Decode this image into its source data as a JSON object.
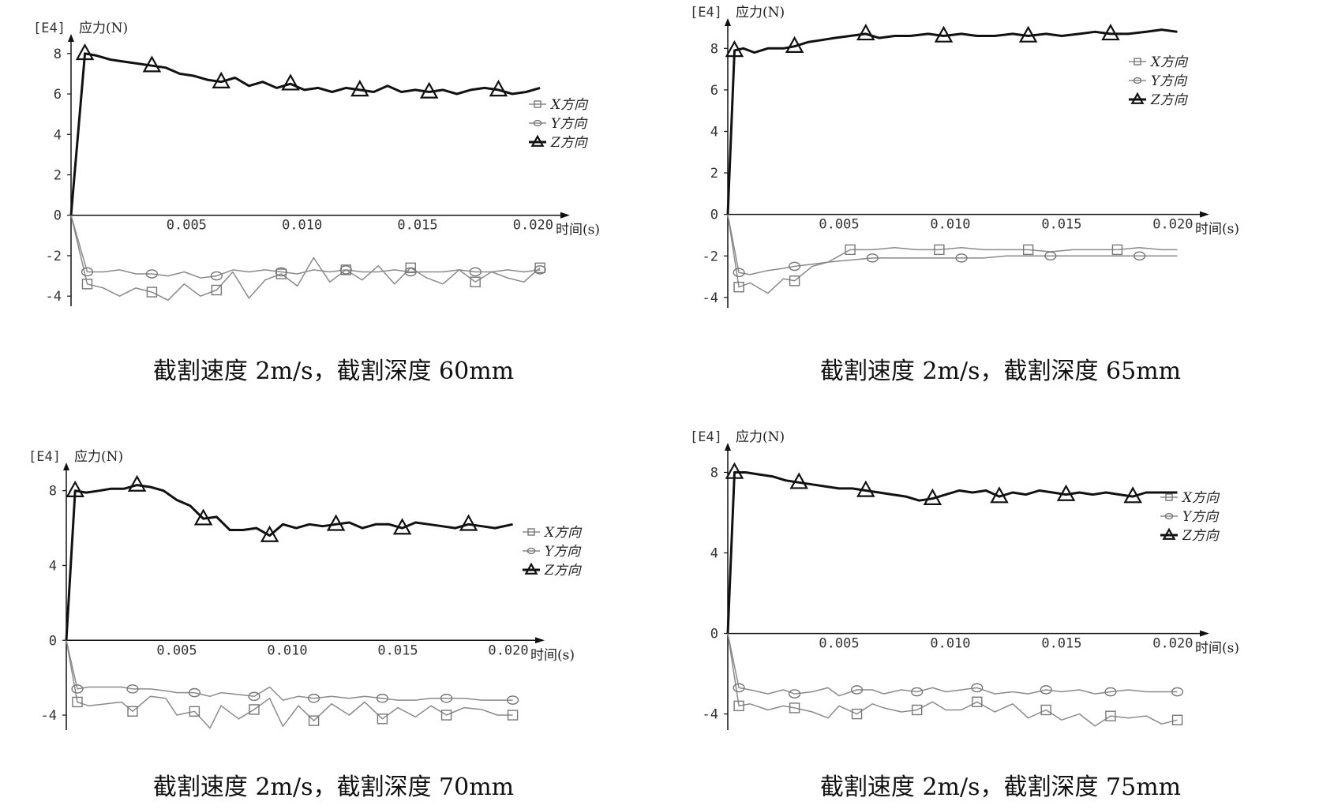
{
  "chart_data": [
    {
      "type": "line",
      "caption": "截割速度 2m/s，截割深度 60mm",
      "scale_label": "[E4]",
      "ylabel": "应力(N)",
      "xlabel": "时间(s)",
      "x_ticks": [
        "0.005",
        "0.010",
        "0.015",
        "0.020"
      ],
      "y_ticks": [
        "-4",
        "-2",
        "0",
        "2",
        "4",
        "6",
        "8"
      ],
      "xlim": [
        0,
        0.0205
      ],
      "ylim": [
        -4.5,
        8.5
      ],
      "legend_position": "right",
      "series": [
        {
          "name": "X方向",
          "marker": "square",
          "x": [
            0,
            0.0007,
            0.0014,
            0.0021,
            0.0028,
            0.0035,
            0.0042,
            0.0049,
            0.0056,
            0.0063,
            0.007,
            0.0077,
            0.0084,
            0.0091,
            0.0098,
            0.0105,
            0.0112,
            0.0119,
            0.0126,
            0.0133,
            0.014,
            0.0147,
            0.0154,
            0.0161,
            0.0168,
            0.0175,
            0.0182,
            0.0189,
            0.0196,
            0.0203
          ],
          "y": [
            0,
            -3.4,
            -3.6,
            -4.0,
            -3.6,
            -3.8,
            -4.2,
            -3.4,
            -4.0,
            -3.7,
            -2.8,
            -4.1,
            -3.2,
            -2.9,
            -3.5,
            -2.1,
            -3.3,
            -2.7,
            -3.2,
            -2.5,
            -3.4,
            -2.6,
            -3.1,
            -3.4,
            -2.7,
            -3.3,
            -2.8,
            -3.1,
            -3.3,
            -2.6
          ]
        },
        {
          "name": "Y方向",
          "marker": "circle",
          "x": [
            0,
            0.0007,
            0.0014,
            0.0021,
            0.0028,
            0.0035,
            0.0042,
            0.0049,
            0.0056,
            0.0063,
            0.007,
            0.0077,
            0.0084,
            0.0091,
            0.0098,
            0.0105,
            0.0112,
            0.0119,
            0.0126,
            0.0133,
            0.014,
            0.0147,
            0.0154,
            0.0161,
            0.0168,
            0.0175,
            0.0182,
            0.0189,
            0.0196,
            0.0203
          ],
          "y": [
            0,
            -2.8,
            -2.8,
            -2.7,
            -2.9,
            -2.9,
            -3.0,
            -2.8,
            -3.1,
            -3.0,
            -2.7,
            -2.8,
            -2.7,
            -2.8,
            -2.9,
            -2.7,
            -2.8,
            -2.7,
            -2.8,
            -2.8,
            -2.7,
            -2.8,
            -2.8,
            -2.8,
            -2.7,
            -2.8,
            -2.8,
            -2.7,
            -2.8,
            -2.7
          ]
        },
        {
          "name": "Z方向",
          "marker": "triangle",
          "x": [
            0,
            0.0006,
            0.0011,
            0.0017,
            0.0023,
            0.0029,
            0.0035,
            0.0041,
            0.0047,
            0.0053,
            0.0059,
            0.0065,
            0.0071,
            0.0077,
            0.0083,
            0.0089,
            0.0095,
            0.0101,
            0.0107,
            0.0113,
            0.0119,
            0.0125,
            0.0131,
            0.0137,
            0.0143,
            0.0149,
            0.0155,
            0.0161,
            0.0167,
            0.0173,
            0.0179,
            0.0185,
            0.0191,
            0.0197,
            0.0203
          ],
          "y": [
            0,
            8.0,
            7.9,
            7.7,
            7.6,
            7.5,
            7.4,
            7.3,
            7.0,
            6.9,
            6.7,
            6.6,
            6.8,
            6.4,
            6.6,
            6.3,
            6.5,
            6.2,
            6.3,
            6.1,
            6.3,
            6.2,
            6.1,
            6.4,
            6.1,
            6.2,
            6.1,
            6.2,
            6.0,
            6.2,
            6.3,
            6.2,
            6.0,
            6.1,
            6.3
          ]
        }
      ]
    },
    {
      "type": "line",
      "caption": "截割速度 2m/s，截割深度 65mm",
      "scale_label": "[E4]",
      "ylabel": "应力(N)",
      "xlabel": "时间(s)",
      "x_ticks": [
        "0.005",
        "0.010",
        "0.015",
        "0.020"
      ],
      "y_ticks": [
        "-4",
        "-2",
        "0",
        "2",
        "4",
        "6",
        "8"
      ],
      "xlim": [
        0,
        0.0205
      ],
      "ylim": [
        -4.5,
        9.0
      ],
      "legend_position": "right",
      "series": [
        {
          "name": "X方向",
          "marker": "square",
          "x": [
            0,
            0.0005,
            0.001,
            0.0018,
            0.0025,
            0.003,
            0.0038,
            0.0045,
            0.005,
            0.0055,
            0.0065,
            0.0075,
            0.0085,
            0.0095,
            0.0105,
            0.0115,
            0.0125,
            0.0135,
            0.0145,
            0.0155,
            0.0165,
            0.0175,
            0.0185,
            0.0195,
            0.0202
          ],
          "y": [
            0,
            -3.5,
            -3.3,
            -3.8,
            -3.1,
            -3.2,
            -2.5,
            -2.3,
            -2.0,
            -1.7,
            -1.7,
            -1.6,
            -1.7,
            -1.7,
            -1.6,
            -1.7,
            -1.7,
            -1.7,
            -1.8,
            -1.7,
            -1.7,
            -1.7,
            -1.6,
            -1.7,
            -1.7
          ]
        },
        {
          "name": "Y方向",
          "marker": "circle",
          "x": [
            0,
            0.0005,
            0.001,
            0.0018,
            0.0025,
            0.003,
            0.0038,
            0.0045,
            0.0055,
            0.0065,
            0.0075,
            0.0085,
            0.0095,
            0.0105,
            0.0115,
            0.0125,
            0.0135,
            0.0145,
            0.0155,
            0.0165,
            0.0175,
            0.0185,
            0.0195,
            0.0202
          ],
          "y": [
            0,
            -2.8,
            -2.9,
            -2.7,
            -2.6,
            -2.5,
            -2.4,
            -2.3,
            -2.2,
            -2.1,
            -2.1,
            -2.1,
            -2.1,
            -2.1,
            -2.1,
            -2.0,
            -2.0,
            -2.0,
            -2.0,
            -2.0,
            -2.0,
            -2.0,
            -2.0,
            -2.0
          ]
        },
        {
          "name": "Z方向",
          "marker": "triangle",
          "x": [
            0,
            0.0003,
            0.0007,
            0.0012,
            0.0018,
            0.0025,
            0.003,
            0.0036,
            0.0042,
            0.0048,
            0.0055,
            0.0062,
            0.0068,
            0.0075,
            0.0082,
            0.009,
            0.0097,
            0.0105,
            0.0112,
            0.012,
            0.0128,
            0.0135,
            0.0143,
            0.015,
            0.0158,
            0.0165,
            0.0172,
            0.018,
            0.0188,
            0.0195,
            0.0202
          ],
          "y": [
            0,
            7.9,
            8.0,
            7.8,
            8.0,
            8.0,
            8.1,
            8.3,
            8.4,
            8.5,
            8.6,
            8.7,
            8.5,
            8.6,
            8.6,
            8.7,
            8.6,
            8.7,
            8.6,
            8.6,
            8.7,
            8.6,
            8.7,
            8.6,
            8.7,
            8.8,
            8.7,
            8.7,
            8.8,
            8.9,
            8.8
          ]
        }
      ]
    },
    {
      "type": "line",
      "caption": "截割速度 2m/s，截割深度 70mm",
      "scale_label": "[E4]",
      "ylabel": "应力(N)",
      "xlabel": "时间(s)",
      "x_ticks": [
        "0.005",
        "0.010",
        "0.015",
        "0.020"
      ],
      "y_ticks": [
        "-4",
        "0",
        "4",
        "8"
      ],
      "xlim": [
        0,
        0.0205
      ],
      "ylim": [
        -4.8,
        9.0
      ],
      "legend_position": "right",
      "series": [
        {
          "name": "X方向",
          "marker": "square",
          "x": [
            0,
            0.0005,
            0.001,
            0.0018,
            0.0025,
            0.003,
            0.0038,
            0.0045,
            0.005,
            0.0058,
            0.0065,
            0.007,
            0.0078,
            0.0085,
            0.0092,
            0.0098,
            0.0105,
            0.0112,
            0.012,
            0.0128,
            0.0135,
            0.0143,
            0.015,
            0.0158,
            0.0165,
            0.0172,
            0.018,
            0.0188,
            0.0195,
            0.0202
          ],
          "y": [
            0,
            -3.3,
            -3.5,
            -3.4,
            -3.3,
            -3.8,
            -3.0,
            -3.1,
            -4.0,
            -3.8,
            -4.7,
            -3.5,
            -4.2,
            -3.7,
            -3.1,
            -4.6,
            -3.5,
            -4.3,
            -3.4,
            -4.0,
            -3.3,
            -4.2,
            -3.6,
            -4.1,
            -3.5,
            -4.0,
            -3.6,
            -3.7,
            -4.0,
            -4.0
          ]
        },
        {
          "name": "Y方向",
          "marker": "circle",
          "x": [
            0,
            0.0005,
            0.001,
            0.0018,
            0.0025,
            0.003,
            0.0038,
            0.0045,
            0.005,
            0.0058,
            0.0065,
            0.007,
            0.0078,
            0.0085,
            0.0092,
            0.0098,
            0.0105,
            0.0112,
            0.012,
            0.0128,
            0.0135,
            0.0143,
            0.015,
            0.0158,
            0.0165,
            0.0172,
            0.018,
            0.0188,
            0.0195,
            0.0202
          ],
          "y": [
            0,
            -2.6,
            -2.5,
            -2.5,
            -2.5,
            -2.6,
            -2.6,
            -2.7,
            -2.8,
            -2.8,
            -3.0,
            -2.8,
            -2.9,
            -3.0,
            -2.5,
            -3.2,
            -3.0,
            -3.1,
            -3.0,
            -3.1,
            -3.0,
            -3.1,
            -3.2,
            -3.2,
            -3.1,
            -3.1,
            -3.1,
            -3.2,
            -3.2,
            -3.2
          ]
        },
        {
          "name": "Z方向",
          "marker": "triangle",
          "x": [
            0,
            0.0004,
            0.0009,
            0.0015,
            0.002,
            0.0026,
            0.0032,
            0.0038,
            0.0044,
            0.005,
            0.0056,
            0.0062,
            0.0068,
            0.0074,
            0.008,
            0.0086,
            0.0092,
            0.0098,
            0.0104,
            0.011,
            0.0116,
            0.0122,
            0.0128,
            0.0134,
            0.014,
            0.0146,
            0.0152,
            0.0158,
            0.0164,
            0.017,
            0.0176,
            0.0182,
            0.0188,
            0.0194,
            0.0202
          ],
          "y": [
            0,
            8.0,
            7.9,
            8.0,
            8.1,
            8.1,
            8.3,
            8.2,
            8.0,
            7.5,
            7.2,
            6.5,
            6.6,
            5.9,
            5.9,
            6.0,
            5.6,
            6.2,
            6.0,
            6.2,
            6.1,
            6.2,
            6.3,
            6.0,
            6.2,
            6.2,
            6.0,
            6.3,
            6.2,
            6.1,
            6.0,
            6.2,
            6.1,
            6.0,
            6.2
          ]
        }
      ]
    },
    {
      "type": "line",
      "caption": "截割速度 2m/s，截割深度 75mm",
      "scale_label": "[E4]",
      "ylabel": "应力(N)",
      "xlabel": "时间(s)",
      "x_ticks": [
        "0.005",
        "0.010",
        "0.015",
        "0.020"
      ],
      "y_ticks": [
        "-4",
        "0",
        "4",
        "8"
      ],
      "xlim": [
        0,
        0.0205
      ],
      "ylim": [
        -4.8,
        9.0
      ],
      "legend_position": "right",
      "series": [
        {
          "name": "X方向",
          "marker": "square",
          "x": [
            0,
            0.0005,
            0.001,
            0.0018,
            0.0025,
            0.003,
            0.0038,
            0.0045,
            0.005,
            0.0058,
            0.0065,
            0.007,
            0.0078,
            0.0085,
            0.0092,
            0.0098,
            0.0105,
            0.0112,
            0.012,
            0.0128,
            0.0135,
            0.0143,
            0.015,
            0.0158,
            0.0165,
            0.0172,
            0.018,
            0.0188,
            0.0195,
            0.0202
          ],
          "y": [
            0,
            -3.6,
            -3.5,
            -3.8,
            -3.6,
            -3.7,
            -3.9,
            -4.2,
            -3.6,
            -4.0,
            -3.5,
            -3.7,
            -3.9,
            -3.8,
            -3.4,
            -3.8,
            -3.8,
            -3.4,
            -3.9,
            -3.5,
            -4.2,
            -3.8,
            -4.3,
            -4.0,
            -4.6,
            -4.1,
            -4.2,
            -4.1,
            -4.5,
            -4.3
          ]
        },
        {
          "name": "Y方向",
          "marker": "circle",
          "x": [
            0,
            0.0005,
            0.001,
            0.0018,
            0.0025,
            0.003,
            0.0038,
            0.0045,
            0.005,
            0.0058,
            0.0065,
            0.007,
            0.0078,
            0.0085,
            0.0092,
            0.0098,
            0.0105,
            0.0112,
            0.012,
            0.0128,
            0.0135,
            0.0143,
            0.015,
            0.0158,
            0.0165,
            0.0172,
            0.018,
            0.0188,
            0.0195,
            0.0202
          ],
          "y": [
            0,
            -2.7,
            -2.8,
            -3.0,
            -2.8,
            -3.0,
            -2.9,
            -2.7,
            -3.1,
            -2.8,
            -2.8,
            -3.0,
            -2.8,
            -2.9,
            -2.7,
            -2.9,
            -2.8,
            -2.7,
            -3.0,
            -2.9,
            -3.0,
            -2.8,
            -2.9,
            -2.8,
            -3.0,
            -2.9,
            -2.8,
            -2.9,
            -2.9,
            -2.9
          ]
        },
        {
          "name": "Z方向",
          "marker": "triangle",
          "x": [
            0,
            0.0003,
            0.0008,
            0.0014,
            0.002,
            0.0026,
            0.0032,
            0.0038,
            0.0044,
            0.005,
            0.0056,
            0.0062,
            0.0068,
            0.0074,
            0.008,
            0.0086,
            0.0092,
            0.0098,
            0.0104,
            0.011,
            0.0116,
            0.0122,
            0.0128,
            0.0134,
            0.014,
            0.0146,
            0.0152,
            0.0158,
            0.0164,
            0.017,
            0.0176,
            0.0182,
            0.0188,
            0.0194,
            0.0202
          ],
          "y": [
            0,
            8.0,
            8.0,
            7.9,
            7.8,
            7.6,
            7.5,
            7.4,
            7.3,
            7.2,
            7.2,
            7.1,
            7.0,
            6.9,
            6.8,
            6.6,
            6.7,
            6.9,
            7.1,
            7.0,
            7.1,
            6.8,
            7.0,
            6.9,
            7.1,
            7.0,
            6.9,
            7.0,
            6.9,
            7.0,
            6.9,
            6.8,
            7.0,
            7.0,
            7.0
          ]
        }
      ]
    }
  ]
}
